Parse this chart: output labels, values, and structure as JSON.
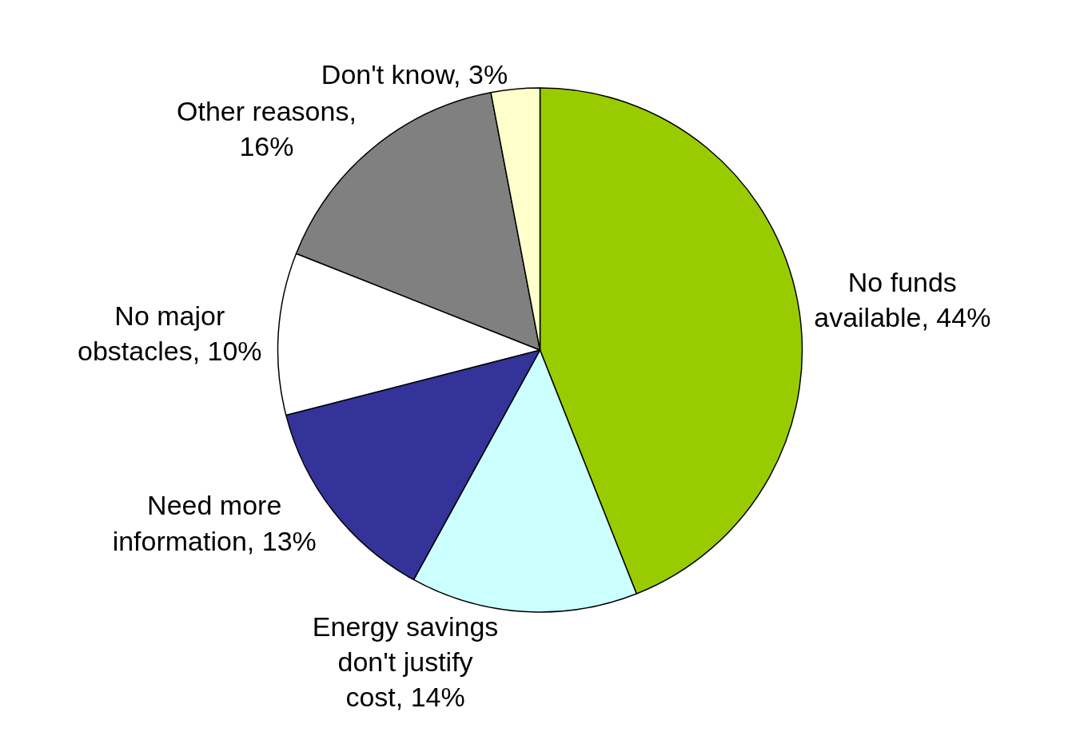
{
  "chart_data": {
    "type": "pie",
    "categories": [
      "No funds available, 44%",
      "Energy savings don't justify cost, 14%",
      "Need more information, 13%",
      "No major obstacles, 10%",
      "Other reasons, 16%",
      "Don't know, 3%"
    ],
    "values": [
      44,
      14,
      13,
      10,
      16,
      3
    ],
    "colors": [
      "#99cc00",
      "#ccffff",
      "#333399",
      "#ffffff",
      "#808080",
      "#ffffcc"
    ]
  }
}
